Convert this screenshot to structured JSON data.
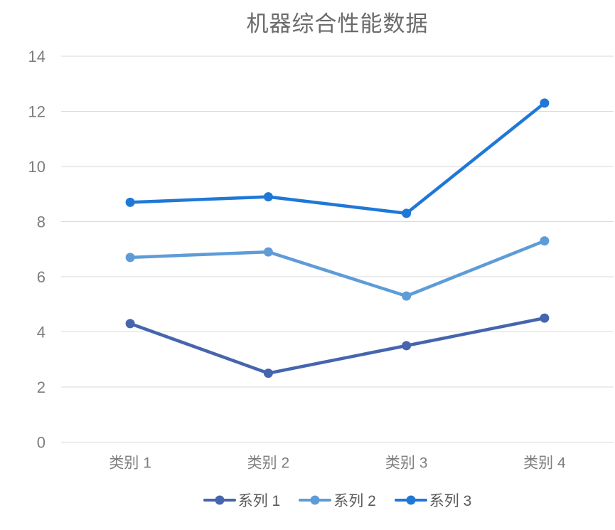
{
  "chart_data": {
    "type": "line",
    "title": "机器综合性能数据",
    "categories": [
      "类别 1",
      "类别 2",
      "类别 3",
      "类别 4"
    ],
    "series": [
      {
        "name": "系列 1",
        "color": "#4565AE",
        "values": [
          4.3,
          2.5,
          3.5,
          4.5
        ]
      },
      {
        "name": "系列 2",
        "color": "#5E9CD8",
        "values": [
          6.7,
          6.9,
          5.3,
          7.3
        ]
      },
      {
        "name": "系列 3",
        "color": "#1F78D6",
        "values": [
          8.7,
          8.9,
          8.3,
          12.3
        ]
      }
    ],
    "xlabel": "",
    "ylabel": "",
    "ylim": [
      0,
      14
    ],
    "yticks": [
      0,
      2,
      4,
      6,
      8,
      10,
      12,
      14
    ],
    "grid": true,
    "legend_position": "bottom"
  },
  "colors": {
    "background": "#ffffff",
    "title_text": "#6b6b6b",
    "axis_text": "#7d7d7d",
    "legend_text": "#595959",
    "gridline": "#dadada"
  }
}
